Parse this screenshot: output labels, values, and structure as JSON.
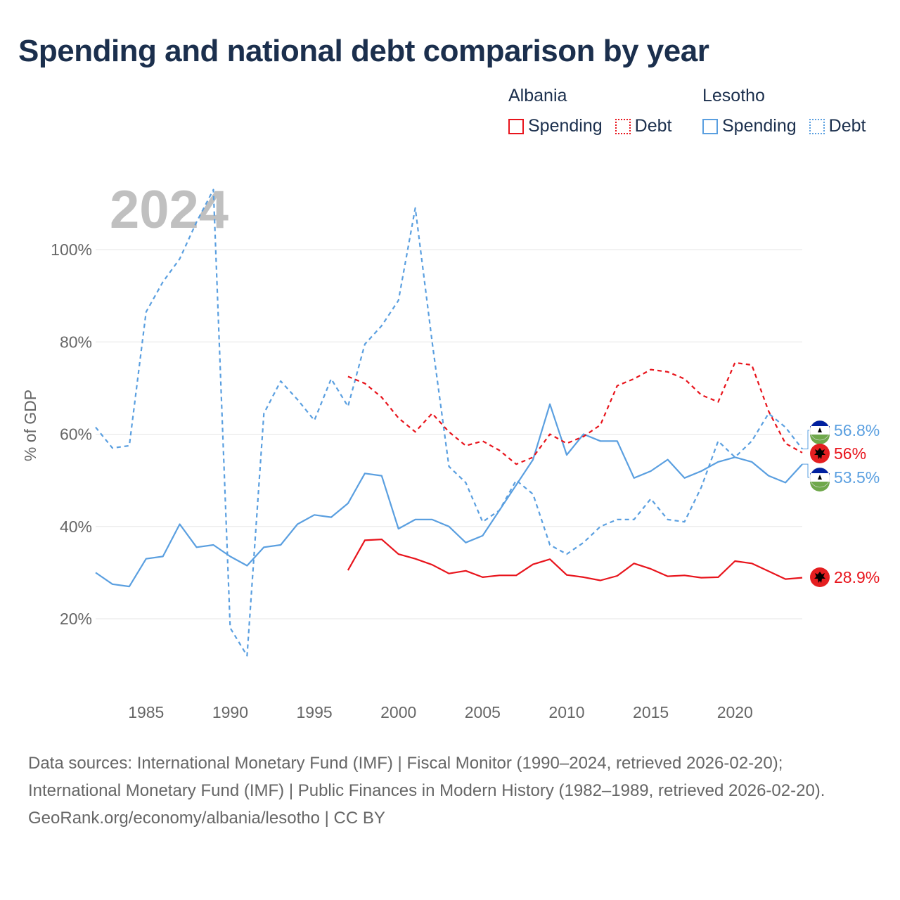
{
  "title": "Spending and national debt comparison by year",
  "legend": {
    "groups": [
      {
        "country": "Albania",
        "color": "#e8141c",
        "items": [
          {
            "label": "Spending",
            "style": "solid"
          },
          {
            "label": "Debt",
            "style": "dotted"
          }
        ]
      },
      {
        "country": "Lesotho",
        "color": "#5a9fe0",
        "items": [
          {
            "label": "Spending",
            "style": "solid"
          },
          {
            "label": "Debt",
            "style": "dotted"
          }
        ]
      }
    ]
  },
  "chart_data": {
    "type": "line",
    "year_label": "2024",
    "ylabel": "% of GDP",
    "xlim": [
      1982,
      2024
    ],
    "ylim": [
      0,
      115
    ],
    "y_ticks": [
      {
        "value": 20,
        "label": "20%"
      },
      {
        "value": 40,
        "label": "40%"
      },
      {
        "value": 60,
        "label": "60%"
      },
      {
        "value": 80,
        "label": "80%"
      },
      {
        "value": 100,
        "label": "100%"
      }
    ],
    "x_ticks": [
      {
        "value": 1985,
        "label": "1985"
      },
      {
        "value": 1990,
        "label": "1990"
      },
      {
        "value": 1995,
        "label": "1995"
      },
      {
        "value": 2000,
        "label": "2000"
      },
      {
        "value": 2005,
        "label": "2005"
      },
      {
        "value": 2010,
        "label": "2010"
      },
      {
        "value": 2015,
        "label": "2015"
      },
      {
        "value": 2020,
        "label": "2020"
      }
    ],
    "series": [
      {
        "name": "Lesotho Debt",
        "country": "Lesotho",
        "kind": "Debt",
        "color": "#5a9fe0",
        "dash": "6,5",
        "start_year": 1982,
        "values": [
          61.5,
          57,
          57.5,
          86.5,
          93,
          98,
          106,
          113,
          18,
          12,
          64.5,
          71.5,
          67.5,
          63,
          72,
          66,
          79.5,
          83.5,
          89,
          109,
          80,
          53,
          49.5,
          41,
          43.5,
          50,
          47,
          36,
          34,
          36.5,
          40,
          41.5,
          41.5,
          46,
          41.5,
          41,
          48.5,
          58.5,
          55,
          58.5,
          64.5,
          61.5,
          56.8
        ],
        "end_label": "56.8%",
        "flag": "lesotho"
      },
      {
        "name": "Lesotho Spending",
        "country": "Lesotho",
        "kind": "Spending",
        "color": "#5a9fe0",
        "dash": "",
        "start_year": 1982,
        "values": [
          30,
          27.5,
          27,
          33,
          33.5,
          40.5,
          35.5,
          36,
          33.5,
          31.5,
          35.5,
          36,
          40.5,
          42.5,
          42,
          45,
          51.5,
          51,
          39.5,
          41.5,
          41.5,
          40,
          36.5,
          38,
          43.5,
          49,
          54.5,
          66.5,
          55.5,
          60,
          58.5,
          58.5,
          50.5,
          52,
          54.5,
          50.5,
          52,
          54,
          55,
          54,
          51,
          49.5,
          53.5
        ],
        "end_label": "53.5%",
        "flag": "lesotho"
      },
      {
        "name": "Albania Debt",
        "country": "Albania",
        "kind": "Debt",
        "color": "#e8141c",
        "dash": "6,5",
        "start_year": 1997,
        "values": [
          72.5,
          71,
          68,
          63.5,
          60.5,
          64.5,
          60.5,
          57.5,
          58.5,
          56.5,
          53.5,
          55,
          60,
          58,
          59.5,
          62,
          70.5,
          72,
          74,
          73.5,
          72,
          68.5,
          67,
          75.5,
          75,
          65,
          58,
          56
        ],
        "end_label": "56%",
        "flag": "albania"
      },
      {
        "name": "Albania Spending",
        "country": "Albania",
        "kind": "Spending",
        "color": "#e8141c",
        "dash": "",
        "start_year": 1997,
        "values": [
          30.5,
          37,
          37.2,
          34,
          33,
          31.7,
          29.8,
          30.4,
          29,
          29.4,
          29.4,
          31.8,
          32.9,
          29.5,
          29,
          28.3,
          29.3,
          32,
          30.8,
          29.2,
          29.4,
          28.9,
          29,
          32.5,
          32,
          30.3,
          28.6,
          28.9
        ],
        "end_label": "28.9%",
        "flag": "albania"
      }
    ]
  },
  "sources": {
    "text": "Data sources: International Monetary Fund (IMF) | Fiscal Monitor (1990–2024, retrieved 2026-02-20); International Monetary Fund (IMF) | Public Finances in Modern History (1982–1989, retrieved 2026-02-20).",
    "credit": "GeoRank.org/economy/albania/lesotho | CC BY"
  }
}
